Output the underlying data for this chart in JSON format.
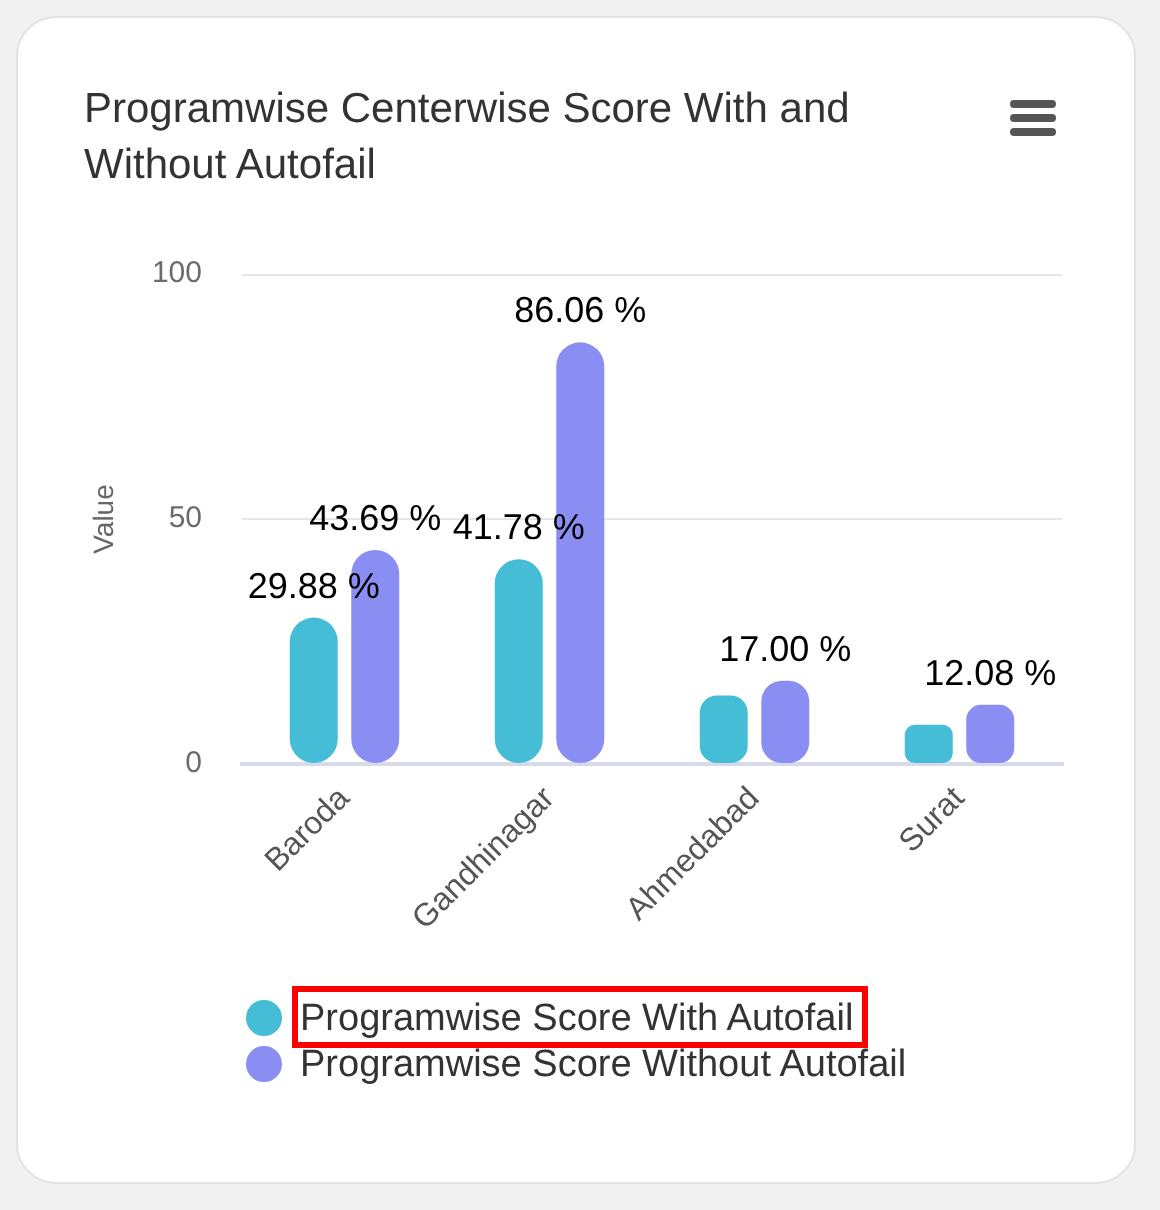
{
  "chart_data": {
    "type": "bar",
    "title": "Programwise Centerwise Score With and Without Autofail",
    "ylabel": "Value",
    "categories": [
      "Baroda",
      "Gandhinagar",
      "Ahmedabad",
      "Surat"
    ],
    "series": [
      {
        "name": "Programwise Score With Autofail",
        "color": "#46bdd6",
        "values": [
          29.88,
          41.78,
          14,
          8
        ],
        "value_labels": [
          "29.88 %",
          "41.78 %",
          null,
          null
        ]
      },
      {
        "name": "Programwise Score Without Autofail",
        "color": "#8a8df1",
        "values": [
          43.69,
          86.06,
          17.0,
          12.08
        ],
        "value_labels": [
          "43.69 %",
          "86.06 %",
          "17.00 %",
          "12.08 %"
        ]
      }
    ],
    "ylim": [
      0,
      100
    ],
    "yticks": [
      0,
      50,
      100
    ],
    "grid": "y",
    "legend": "bottom"
  }
}
